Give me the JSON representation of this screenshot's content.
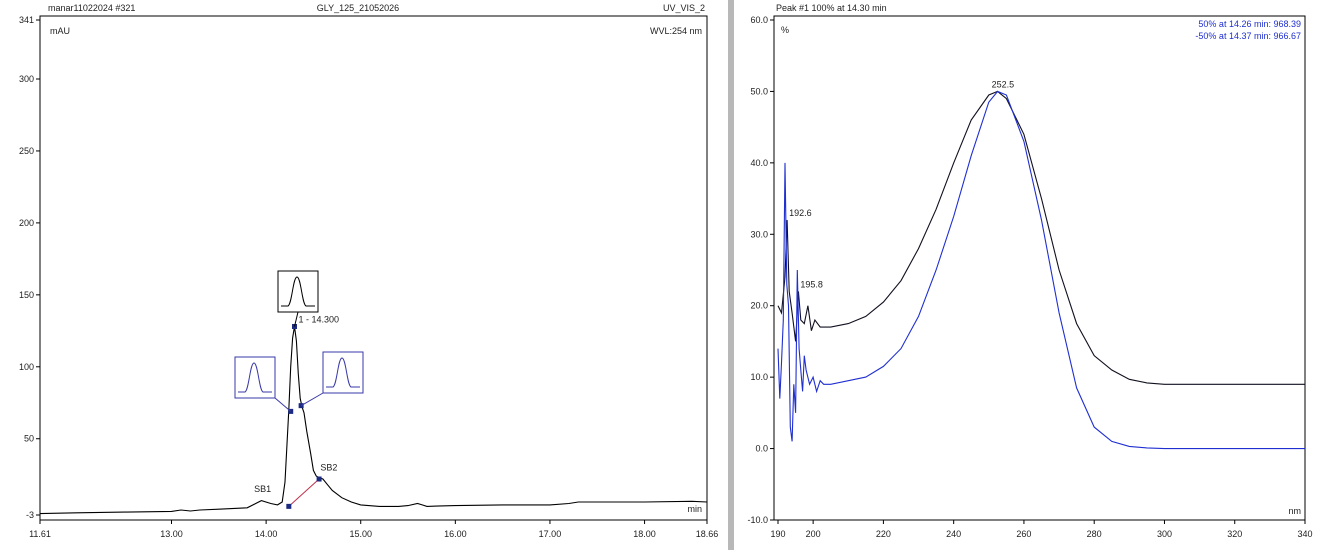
{
  "chart_data": [
    {
      "type": "line",
      "header": {
        "left": "manar11022024 #321",
        "center": "GLY_125_21052026",
        "right": "UV_VIS_2"
      },
      "ylabel": "mAU",
      "xlabel": "min",
      "wavelength_label": "WVL:254 nm",
      "xlim": [
        11.61,
        18.66
      ],
      "ylim": [
        -3,
        341
      ],
      "xtick_labels": [
        "11.61",
        "13.00",
        "14.00",
        "15.00",
        "16.00",
        "17.00",
        "18.00",
        "18.66"
      ],
      "xticks": [
        11.61,
        13.0,
        14.0,
        15.0,
        16.0,
        17.0,
        18.0,
        18.66
      ],
      "ytick_labels": [
        "341",
        "300",
        "250",
        "200",
        "150",
        "100",
        "50",
        "-3"
      ],
      "yticks": [
        341,
        300,
        250,
        200,
        150,
        100,
        50,
        -3
      ],
      "series": [
        {
          "color": "#000000",
          "x": [
            11.61,
            12.0,
            12.5,
            13.0,
            13.1,
            13.2,
            13.3,
            13.5,
            13.8,
            13.95,
            14.05,
            14.12,
            14.17,
            14.2,
            14.22,
            14.24,
            14.26,
            14.28,
            14.3,
            14.32,
            14.34,
            14.36,
            14.38,
            14.4,
            14.43,
            14.47,
            14.5,
            14.53,
            14.56,
            14.6,
            14.65,
            14.7,
            14.8,
            14.9,
            15.0,
            15.2,
            15.4,
            15.5,
            15.6,
            15.65,
            15.7,
            15.8,
            16.0,
            16.5,
            17.0,
            17.2,
            17.3,
            17.5,
            18.0,
            18.5,
            18.66
          ],
          "y": [
            -2,
            -1.5,
            -1,
            -0.5,
            0.5,
            -0.2,
            0.5,
            1,
            2,
            7,
            5,
            4,
            6,
            20,
            45,
            70,
            100,
            120,
            128,
            118,
            95,
            78,
            72,
            68,
            55,
            40,
            28,
            24,
            23,
            22,
            18,
            14,
            9,
            6,
            4,
            3,
            3,
            3.5,
            5,
            4,
            3,
            3.2,
            3.5,
            4,
            4,
            5,
            6,
            6,
            6,
            6.5,
            6
          ]
        }
      ],
      "peak_label": "1 - 14.300",
      "annotations": [
        {
          "text": "SB1",
          "x": 14.0,
          "y": 11
        },
        {
          "text": "SB2",
          "x": 14.7,
          "y": 26
        }
      ],
      "points": [
        {
          "x": 14.24,
          "y": 3
        },
        {
          "x": 14.3,
          "y": 128
        },
        {
          "x": 14.26,
          "y": 69
        },
        {
          "x": 14.37,
          "y": 73
        },
        {
          "x": 14.56,
          "y": 22
        }
      ]
    },
    {
      "type": "line",
      "header": "Peak #1  100% at 14.30 min",
      "ylabel": "%",
      "xlabel": "nm",
      "legend": [
        {
          "text": "50% at 14.26 min:  968.39",
          "color": "#1f2fd0"
        },
        {
          "text": "-50% at 14.37 min:  966.67",
          "color": "#1f2fd0"
        }
      ],
      "xlim": [
        190,
        340
      ],
      "ylim": [
        -10,
        60
      ],
      "xtick_labels": [
        "190",
        "200",
        "220",
        "240",
        "260",
        "280",
        "300",
        "320",
        "340"
      ],
      "xticks": [
        190,
        200,
        220,
        240,
        260,
        280,
        300,
        320,
        340
      ],
      "ytick_labels": [
        "60.0",
        "50.0",
        "40.0",
        "30.0",
        "20.0",
        "10.0",
        "0.0",
        "-10.0"
      ],
      "yticks": [
        60,
        50,
        40,
        30,
        20,
        10,
        0,
        -10
      ],
      "series": [
        {
          "color": "#101020",
          "x": [
            190,
            191,
            192,
            192.6,
            193.2,
            194,
            195,
            195.8,
            196.5,
            197.5,
            198.5,
            199.5,
            200.5,
            202,
            205,
            210,
            215,
            220,
            225,
            230,
            235,
            240,
            245,
            250,
            252.5,
            255,
            260,
            265,
            270,
            275,
            280,
            285,
            290,
            295,
            300,
            310,
            320,
            330,
            340
          ],
          "y": [
            20,
            19,
            24,
            32,
            22,
            19,
            15,
            22,
            18,
            17.5,
            20,
            16.5,
            18,
            17,
            17,
            17.5,
            18.5,
            20.5,
            23.5,
            28,
            33.5,
            40,
            46,
            49.5,
            50,
            49,
            44,
            35,
            25,
            17.5,
            13,
            11,
            9.7,
            9.2,
            9,
            9,
            9,
            9,
            9
          ]
        },
        {
          "color": "#1f2fd0",
          "x": [
            190,
            190.5,
            191,
            191.5,
            192,
            192.5,
            193,
            193.5,
            194,
            194.5,
            195,
            195.5,
            196,
            196.5,
            197,
            197.5,
            198,
            199,
            200,
            201,
            202,
            203,
            205,
            210,
            215,
            220,
            225,
            230,
            235,
            240,
            245,
            250,
            252.5,
            255,
            260,
            265,
            270,
            275,
            280,
            285,
            290,
            295,
            300,
            310,
            320,
            330,
            340
          ],
          "y": [
            14,
            7,
            12,
            18,
            40,
            23,
            20,
            3,
            1,
            9,
            5,
            25,
            14,
            11,
            8,
            13,
            11,
            9,
            10,
            8,
            9.5,
            9,
            9,
            9.5,
            10,
            11.5,
            14,
            18.5,
            25,
            32.5,
            41,
            48.5,
            50,
            49.5,
            43,
            32,
            19,
            8.5,
            3,
            1,
            0.3,
            0.1,
            0,
            0,
            0,
            0,
            0
          ]
        }
      ],
      "annotations": [
        {
          "text": "252.5",
          "x": 252.5,
          "y": 50
        },
        {
          "text": "192.6",
          "x": 192.6,
          "y": 32
        },
        {
          "text": "195.8",
          "x": 195.8,
          "y": 22
        }
      ]
    }
  ]
}
